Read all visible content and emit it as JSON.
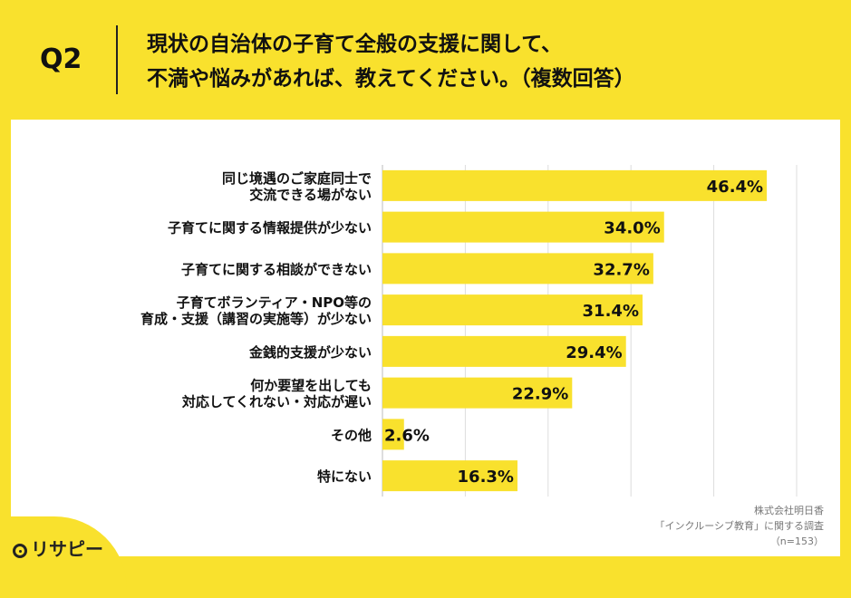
{
  "header": {
    "question": "Q2",
    "title_lines": [
      "現状の自治体の子育て全般の支援に関して、",
      "不満や悩みがあれば、教えてください。（複数回答）"
    ]
  },
  "chart_data": {
    "type": "bar",
    "orientation": "horizontal",
    "categories": [
      [
        "同じ境遇のご家庭同士で",
        "交流できる場がない"
      ],
      [
        "子育てに関する情報提供が少ない"
      ],
      [
        "子育てに関する相談ができない"
      ],
      [
        "子育てボランティア・NPO等の",
        "育成・支援（講習の実施等）が少ない"
      ],
      [
        "金銭的支援が少ない"
      ],
      [
        "何か要望を出しても",
        "対応してくれない・対応が遅い"
      ],
      [
        "その他"
      ],
      [
        "特にない"
      ]
    ],
    "values": [
      46.4,
      34.0,
      32.7,
      31.4,
      29.4,
      22.9,
      2.6,
      16.3
    ],
    "value_labels": [
      "46.4%",
      "34.0%",
      "32.7%",
      "31.4%",
      "29.4%",
      "22.9%",
      "2.6%",
      "16.3%"
    ],
    "xlim": [
      0,
      50
    ],
    "grid": true,
    "bar_color": "#F9E12D"
  },
  "footer": {
    "lines": [
      "株式会社明日香",
      "「インクルーシブ教育」に関する調査",
      "（n=153）"
    ]
  },
  "logo": {
    "text": "リサピー"
  }
}
